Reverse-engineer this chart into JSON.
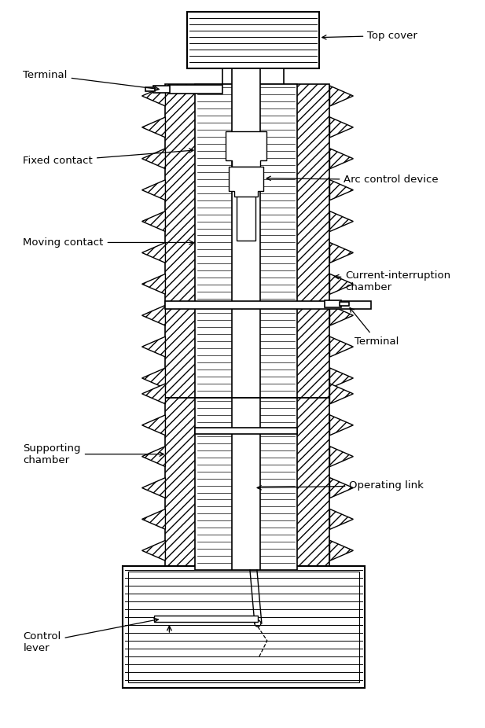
{
  "bg_color": "#ffffff",
  "line_color": "#000000",
  "labels": {
    "top_cover": "Top cover",
    "terminal_top": "Terminal",
    "fixed_contact": "Fixed contact",
    "arc_control": "Arc control device",
    "moving_contact": "Moving contact",
    "current_interruption": "Current-interruption\nchamber",
    "terminal_mid": "Terminal",
    "supporting_chamber": "Supporting\nchamber",
    "operating_link": "Operating link",
    "control_lever": "Control\nlever"
  },
  "figsize": [
    6.17,
    9.26
  ],
  "dpi": 100
}
